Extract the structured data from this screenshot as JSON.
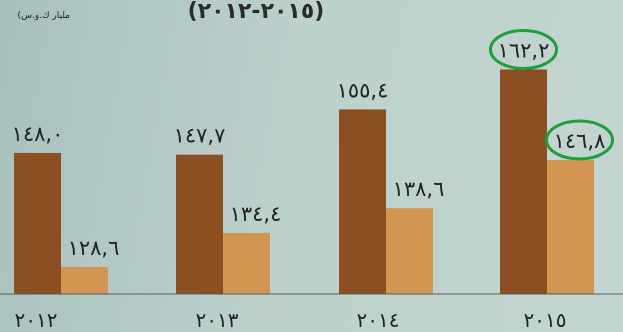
{
  "chart_data": {
    "type": "bar",
    "title": "(٢٠١٥-٢٠١٢)",
    "unit_label": "(مليار ك.و.س",
    "categories": [
      "٢٠١٢",
      "٢٠١٣",
      "٢٠١٤",
      "٢٠١٥"
    ],
    "series": [
      {
        "values": [
          148.0,
          147.7,
          155.4,
          162.2
        ],
        "labels": [
          "١٤٨,٠",
          "١٤٧,٧",
          "١٥٥,٤",
          "١٦٢,٢"
        ],
        "color": "#8b4f22"
      },
      {
        "values": [
          128.6,
          134.4,
          138.6,
          146.8
        ],
        "labels": [
          "١٢٨,٦",
          "١٣٤,٤",
          "١٣٨,٦",
          "١٤٦,٨"
        ],
        "color": "#d39552"
      }
    ],
    "highlighted": [
      [
        0,
        3
      ],
      [
        1,
        3
      ]
    ],
    "highlight_color": "#1f9e3a",
    "ylim": [
      124,
      165
    ]
  }
}
